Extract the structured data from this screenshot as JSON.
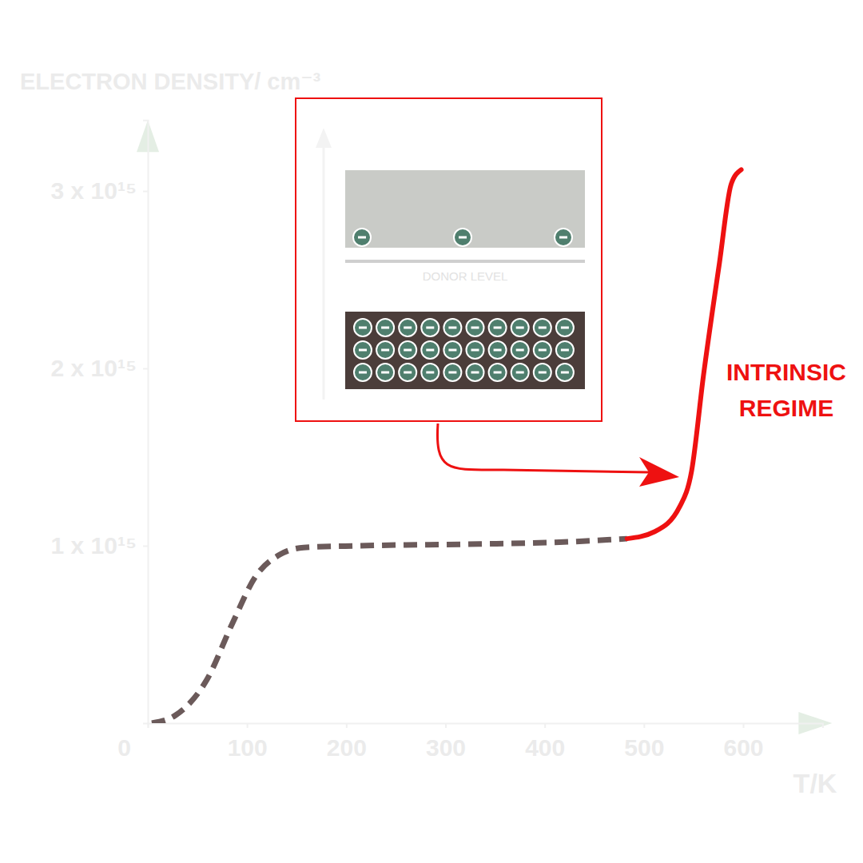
{
  "chart_data": {
    "type": "line",
    "y_label": "ELECTRON DENSITY/ cm⁻³",
    "x_label": "T/K",
    "xlim": [
      0,
      680
    ],
    "ylim": [
      0,
      3400000000000000.0
    ],
    "xticks": [
      0,
      100,
      200,
      300,
      400,
      500,
      600
    ],
    "yticks": [
      {
        "value": 1000000000000000.0,
        "label": "1 x 10¹⁵"
      },
      {
        "value": 2000000000000000.0,
        "label": "2 x 10¹⁵"
      },
      {
        "value": 3000000000000000.0,
        "label": "3 x 10¹⁵"
      }
    ],
    "grid": false,
    "series": [
      {
        "x": [
          4,
          28,
          60,
          85,
          109,
          133,
          157,
          213,
          334,
          415,
          483
        ],
        "values": [
          0,
          45000000000000.0,
          250000000000000.0,
          560000000000000.0,
          830000000000000.0,
          950000000000000.0,
          990000000000000.0,
          1000000000000000.0,
          1010000000000000.0,
          1020000000000000.0,
          1040000000000000.0
        ],
        "color": "#6b5a5a",
        "line_style": "dashed"
      },
      {
        "x": [
          483,
          511,
          536,
          548,
          560,
          576,
          588,
          598
        ],
        "values": [
          1040000000000000.0,
          1080000000000000.0,
          1220000000000000.0,
          1420000000000000.0,
          1960000000000000.0,
          2590000000000000.0,
          3040000000000000.0,
          3120000000000000.0
        ],
        "color": "#ee1111",
        "line_style": "solid"
      }
    ],
    "annotation": [
      "INTRINSIC",
      "REGIME"
    ]
  },
  "inset": {
    "donor_label": "DONOR LEVEL",
    "conduction_electrons": 3,
    "valence_electrons": 30
  }
}
